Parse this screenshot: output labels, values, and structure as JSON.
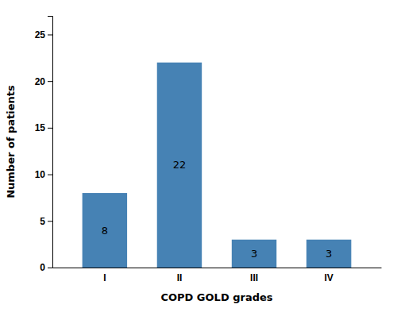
{
  "chart_data": {
    "type": "bar",
    "categories": [
      "I",
      "II",
      "III",
      "IV"
    ],
    "values": [
      8,
      22,
      3,
      3
    ],
    "xlabel": "COPD GOLD grades",
    "ylabel": "Number of patients",
    "ylim": [
      0,
      27
    ],
    "yticks": [
      0,
      5,
      10,
      15,
      20,
      25
    ],
    "grid": false,
    "data_labels": true
  }
}
